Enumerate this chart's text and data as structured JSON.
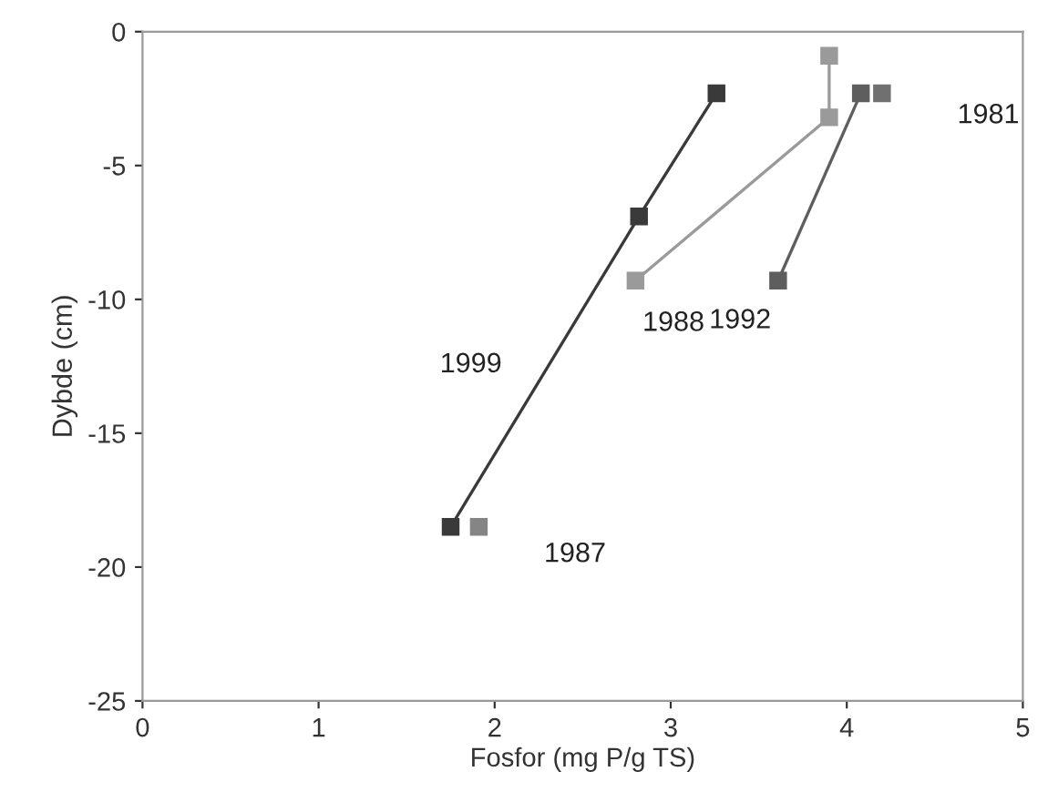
{
  "chart_data": {
    "type": "line",
    "xlabel": "Fosfor (mg P/g TS)",
    "ylabel": "Dybde (cm)",
    "xlim": [
      0,
      5
    ],
    "ylim": [
      -25,
      0
    ],
    "xticks": [
      0,
      1,
      2,
      3,
      4,
      5
    ],
    "yticks": [
      -25,
      -20,
      -15,
      -10,
      -5,
      0
    ],
    "grid": false,
    "legend": false,
    "marker": "square",
    "line_style": "solid",
    "series": [
      {
        "name": "1999",
        "color": "#3a3a3a",
        "x": [
          1.75,
          2.82,
          3.26
        ],
        "values": [
          -18.5,
          -6.9,
          -2.3
        ]
      },
      {
        "name": "1987",
        "color": "#858585",
        "x": [
          1.91
        ],
        "values": [
          -18.5
        ]
      },
      {
        "name": "1988",
        "color": "#9a9a9a",
        "x": [
          2.8,
          3.9,
          3.9
        ],
        "values": [
          -9.3,
          -3.2,
          -0.9
        ]
      },
      {
        "name": "1992",
        "color": "#5e5e5e",
        "x": [
          3.61,
          4.08
        ],
        "values": [
          -9.3,
          -2.3
        ]
      },
      {
        "name": "1981",
        "color": "#707070",
        "x": [
          4.2
        ],
        "values": [
          -2.3
        ]
      }
    ]
  }
}
